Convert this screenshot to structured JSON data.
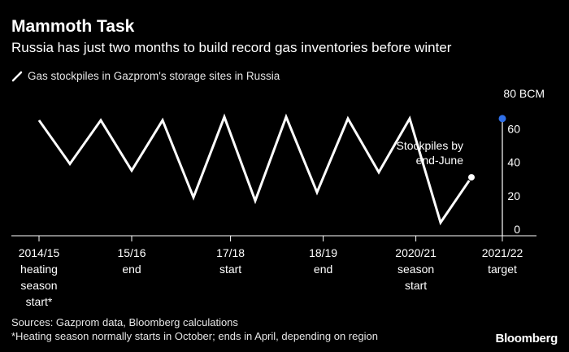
{
  "title": "Mammoth Task",
  "subtitle": "Russia has just two months to build record gas inventories before winter",
  "legend_label": "Gas stockpiles in Gazprom's storage sites in Russia",
  "sources": "Sources: Gazprom data, Bloomberg calculations",
  "footnote": "*Heating season normally starts in October; ends in April, depending on region",
  "brand": "Bloomberg",
  "colors": {
    "background": "#000000",
    "line": "#ffffff",
    "target_marker": "#2f6fe8",
    "axis": "#ffffff"
  },
  "chart_data": {
    "type": "line",
    "title": "Gas stockpiles in Gazprom's storage sites in Russia",
    "ylabel": "",
    "y_unit": "BCM",
    "ylim": [
      0,
      80
    ],
    "y_ticks": [
      {
        "value": 80,
        "label": "80 BCM"
      },
      {
        "value": 60,
        "label": "60"
      },
      {
        "value": 40,
        "label": "40"
      },
      {
        "value": 20,
        "label": "20"
      },
      {
        "value": 0,
        "label": "0"
      }
    ],
    "grid": false,
    "x_categories": [
      {
        "label": [
          "2014/15",
          "heating",
          "season",
          "start*"
        ]
      },
      {
        "label": [
          "15/16",
          "end"
        ]
      },
      {
        "label": [
          "17/18",
          "start"
        ]
      },
      {
        "label": [
          "18/19",
          "end"
        ]
      },
      {
        "label": [
          "2020/21",
          "season",
          "start"
        ]
      },
      {
        "label": [
          "2021/22",
          "target"
        ]
      }
    ],
    "series": [
      {
        "values": [
          {
            "x": 0.0,
            "y": 65
          },
          {
            "x": 0.5,
            "y": 39
          },
          {
            "x": 1.0,
            "y": 65
          },
          {
            "x": 1.5,
            "y": 35
          },
          {
            "x": 2.0,
            "y": 65
          },
          {
            "x": 2.5,
            "y": 19
          },
          {
            "x": 3.0,
            "y": 67
          },
          {
            "x": 3.5,
            "y": 17
          },
          {
            "x": 4.0,
            "y": 67
          },
          {
            "x": 4.5,
            "y": 22
          },
          {
            "x": 5.0,
            "y": 66
          },
          {
            "x": 5.5,
            "y": 34
          },
          {
            "x": 6.0,
            "y": 66
          },
          {
            "x": 6.5,
            "y": 4
          },
          {
            "x": 7.0,
            "y": 31
          }
        ]
      }
    ],
    "target": {
      "x": 7.5,
      "y": 66
    },
    "annotation": {
      "lines": [
        "Stockpiles by",
        "end-June"
      ],
      "x": 7.0,
      "y": 31
    }
  }
}
